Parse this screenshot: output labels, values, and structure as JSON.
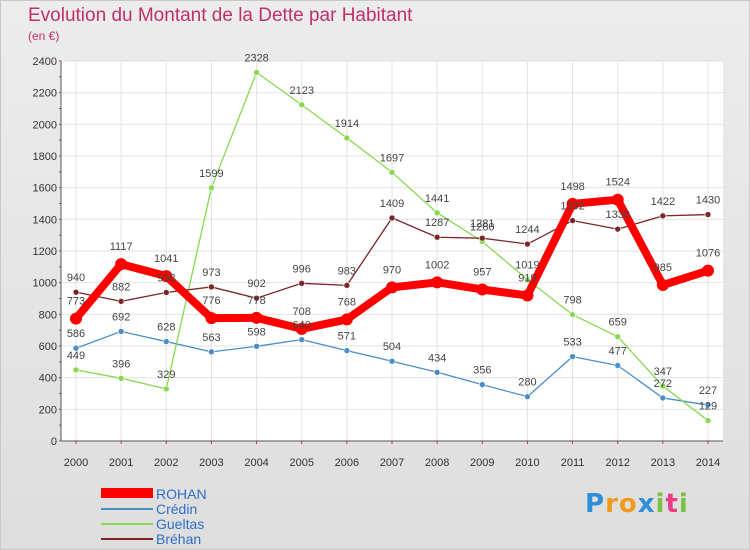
{
  "chart_data": {
    "type": "line",
    "title": "Evolution du Montant de la Dette par Habitant",
    "subtitle": "(en €)",
    "x": [
      "2000",
      "2001",
      "2002",
      "2003",
      "2004",
      "2005",
      "2006",
      "2007",
      "2008",
      "2009",
      "2010",
      "2011",
      "2012",
      "2013",
      "2014"
    ],
    "ylim": [
      0,
      2400
    ],
    "yticks": [
      0,
      200,
      400,
      600,
      800,
      1000,
      1200,
      1400,
      1600,
      1800,
      2000,
      2200,
      2400
    ],
    "grid": true,
    "legend_position": "bottom-left",
    "series": [
      {
        "name": "ROHAN",
        "color": "#ff0000",
        "values": [
          773,
          1117,
          1041,
          776,
          778,
          708,
          768,
          970,
          1002,
          957,
          919,
          1498,
          1524,
          985,
          1076
        ]
      },
      {
        "name": "Crédin",
        "color": "#4a8ec8",
        "values": [
          586,
          692,
          628,
          563,
          598,
          640,
          571,
          504,
          434,
          356,
          280,
          533,
          477,
          272,
          227
        ]
      },
      {
        "name": "Gueltas",
        "color": "#88d850",
        "values": [
          449,
          396,
          329,
          1599,
          2328,
          2123,
          1914,
          1697,
          1441,
          1260,
          1019,
          798,
          659,
          347,
          129
        ]
      },
      {
        "name": "Bréhan",
        "color": "#7a2626",
        "values": [
          940,
          882,
          938,
          973,
          902,
          996,
          983,
          1409,
          1287,
          1281,
          1244,
          1392,
          1338,
          1422,
          1430
        ]
      }
    ]
  },
  "legend": {
    "items": [
      {
        "label": "ROHAN",
        "color": "#ff0000"
      },
      {
        "label": "Crédin",
        "color": "#4a8ec8"
      },
      {
        "label": "Gueltas",
        "color": "#88d850"
      },
      {
        "label": "Bréhan",
        "color": "#7a2626"
      }
    ]
  },
  "logo": {
    "p1": "P",
    "p2": "r",
    "p3": "o",
    "p4": "x",
    "p5": "i",
    "p6": "t",
    "p7": "i"
  }
}
